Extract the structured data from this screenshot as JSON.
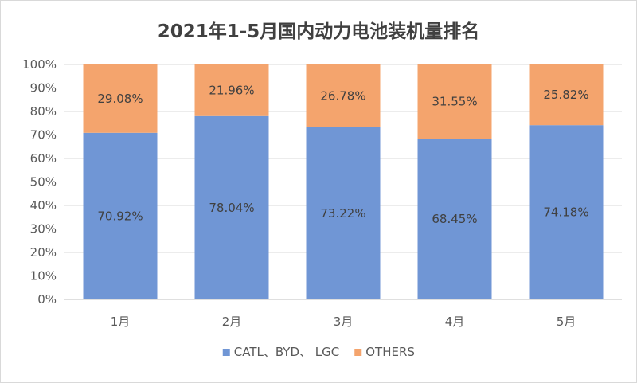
{
  "chart_data": {
    "type": "bar",
    "stacked": true,
    "title": "2021年1-5月国内动力电池装机量排名",
    "categories": [
      "1月",
      "2月",
      "3月",
      "4月",
      "5月"
    ],
    "series": [
      {
        "name": "CATL、BYD、 LGC",
        "color": "#7096d5",
        "values": [
          70.92,
          78.04,
          73.22,
          68.45,
          74.18
        ],
        "labels": [
          "70.92%",
          "78.04%",
          "73.22%",
          "68.45%",
          "74.18%"
        ]
      },
      {
        "name": "OTHERS",
        "color": "#f4a46d",
        "values": [
          29.08,
          21.96,
          26.78,
          31.55,
          25.82
        ],
        "labels": [
          "29.08%",
          "21.96%",
          "26.78%",
          "31.55%",
          "25.82%"
        ]
      }
    ],
    "yticks": [
      "0%",
      "10%",
      "20%",
      "30%",
      "40%",
      "50%",
      "60%",
      "70%",
      "80%",
      "90%",
      "100%"
    ],
    "ylim": [
      0,
      100
    ],
    "grid": true,
    "legend_position": "bottom"
  }
}
